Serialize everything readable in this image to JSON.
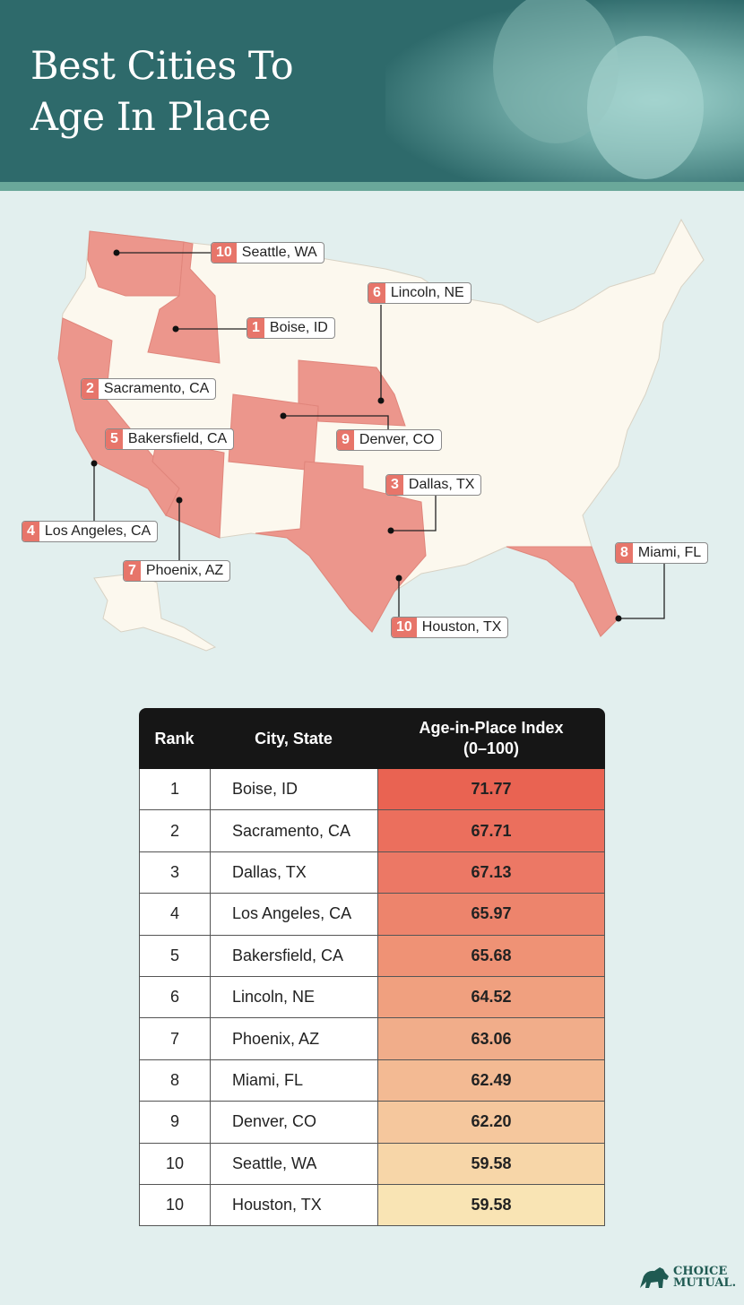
{
  "header": {
    "title_line1": "Best Cities To",
    "title_line2": "Age In Place"
  },
  "colors": {
    "header_bg": "#2e6a6b",
    "stripe": "#6aa89a",
    "page_bg": "#e2efee",
    "state_highlight": "#ec968c",
    "state_default": "#fcf8ee",
    "badge": "#e7756a",
    "scale_high": "#e96352",
    "scale_low": "#f8e3b3"
  },
  "map": {
    "labels": [
      {
        "rank": "10",
        "city": "Seattle, WA"
      },
      {
        "rank": "6",
        "city": "Lincoln, NE"
      },
      {
        "rank": "1",
        "city": "Boise, ID"
      },
      {
        "rank": "2",
        "city": "Sacramento, CA"
      },
      {
        "rank": "5",
        "city": "Bakersfield, CA"
      },
      {
        "rank": "9",
        "city": "Denver, CO"
      },
      {
        "rank": "3",
        "city": "Dallas, TX"
      },
      {
        "rank": "4",
        "city": "Los Angeles, CA"
      },
      {
        "rank": "7",
        "city": "Phoenix, AZ"
      },
      {
        "rank": "8",
        "city": "Miami, FL"
      },
      {
        "rank": "10",
        "city": "Houston, TX"
      }
    ],
    "highlighted_states": [
      "WA",
      "ID",
      "CA",
      "AZ",
      "CO",
      "NE",
      "TX",
      "FL"
    ]
  },
  "chart_data": {
    "type": "table",
    "columns": [
      "Rank",
      "City, State",
      "Age-in-Place Index (0–100)"
    ],
    "header": {
      "rank": "Rank",
      "city": "City, State",
      "index_line1": "Age-in-Place Index",
      "index_line2": "(0–100)"
    },
    "rows": [
      {
        "rank": "1",
        "city": "Boise, ID",
        "index": "71.77",
        "color": "#e96352"
      },
      {
        "rank": "2",
        "city": "Sacramento, CA",
        "index": "67.71",
        "color": "#eb6f5d"
      },
      {
        "rank": "3",
        "city": "Dallas, TX",
        "index": "67.13",
        "color": "#ec7865"
      },
      {
        "rank": "4",
        "city": "Los Angeles, CA",
        "index": "65.97",
        "color": "#ed846c"
      },
      {
        "rank": "5",
        "city": "Bakersfield, CA",
        "index": "65.68",
        "color": "#ef9275"
      },
      {
        "rank": "6",
        "city": "Lincoln, NE",
        "index": "64.52",
        "color": "#f0a07f"
      },
      {
        "rank": "7",
        "city": "Phoenix, AZ",
        "index": "63.06",
        "color": "#f1ad8a"
      },
      {
        "rank": "8",
        "city": "Miami, FL",
        "index": "62.49",
        "color": "#f3ba93"
      },
      {
        "rank": "9",
        "city": "Denver, CO",
        "index": "62.20",
        "color": "#f5c79d"
      },
      {
        "rank": "10",
        "city": "Seattle, WA",
        "index": "59.58",
        "color": "#f7d6a8"
      },
      {
        "rank": "10",
        "city": "Houston, TX",
        "index": "59.58",
        "color": "#f9e4b4"
      }
    ]
  },
  "logo": {
    "line1": "CHOICE",
    "line2": "MUTUAL."
  }
}
